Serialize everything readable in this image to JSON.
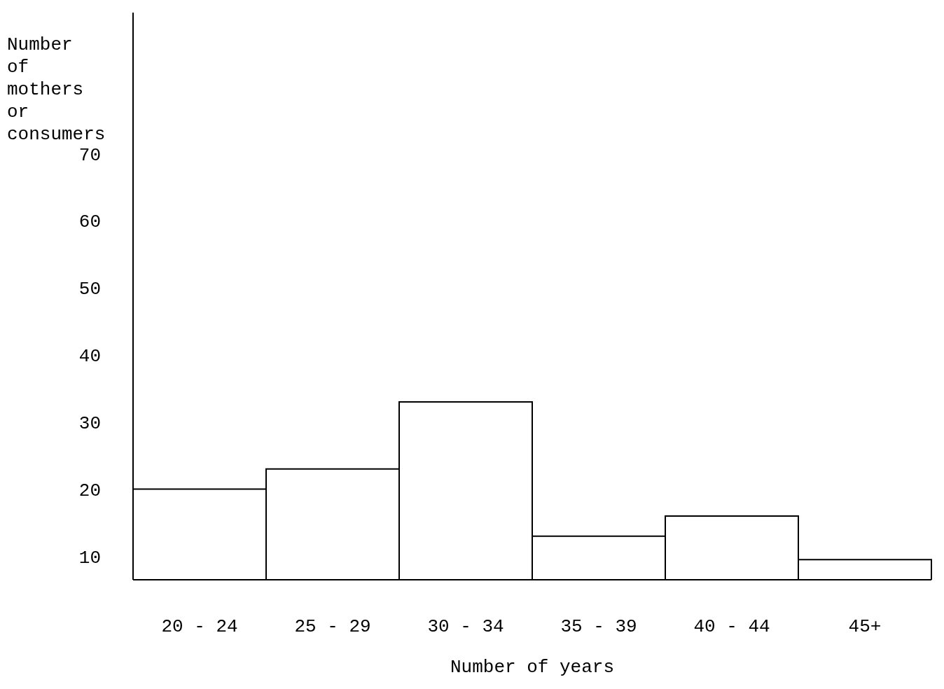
{
  "chart_data": {
    "type": "bar",
    "ylabel": "Number of mothers or consumers",
    "xlabel": "Number of years",
    "categories": [
      "20 - 24",
      "25 - 29",
      "30 - 34",
      "35 - 39",
      "40 - 44",
      "45+"
    ],
    "values": [
      20,
      23,
      33,
      13,
      16,
      9.5
    ],
    "color": "#ffffff",
    "ylim": [
      6.5,
      91
    ],
    "yticks": [
      10,
      20,
      30,
      40,
      50,
      60,
      70
    ],
    "grid": false,
    "legend": false
  }
}
